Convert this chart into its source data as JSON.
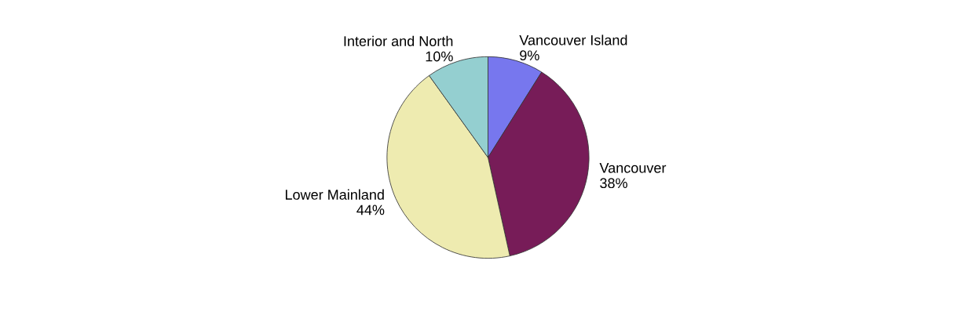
{
  "chart_data": {
    "type": "pie",
    "categories": [
      "Vancouver Island",
      "Vancouver",
      "Lower Mainland",
      "Interior and North"
    ],
    "values": [
      9,
      38,
      44,
      10
    ],
    "value_labels": [
      "9%",
      "38%",
      "44%",
      "10%"
    ],
    "colors": [
      "#7777ee",
      "#771c58",
      "#eeebb0",
      "#94cfd0"
    ],
    "legend": false
  }
}
